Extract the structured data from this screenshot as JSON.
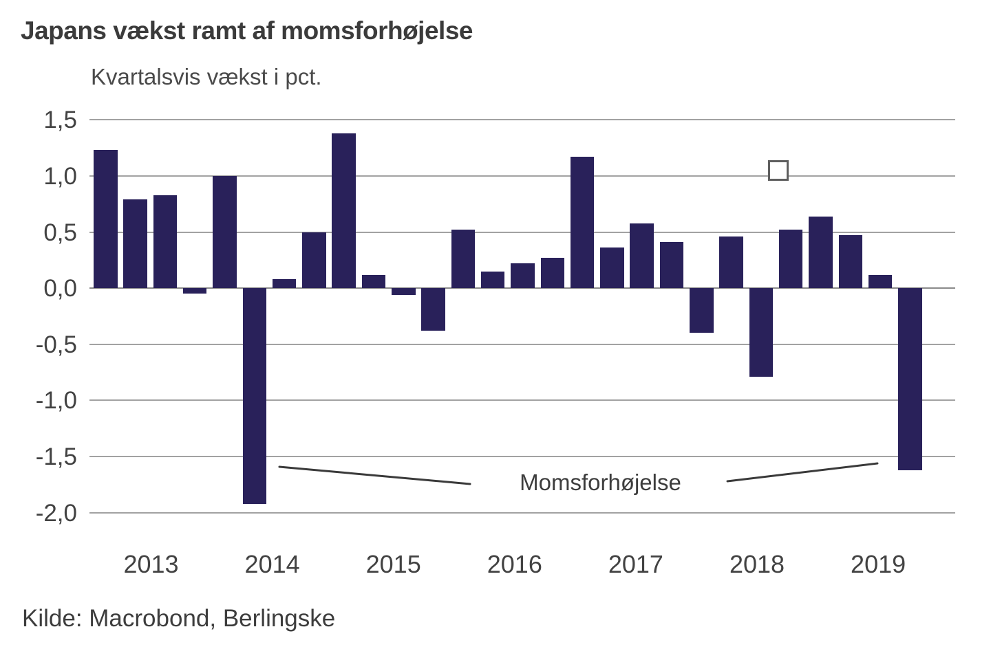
{
  "header": {
    "title": "Japans vækst ramt af momsforhøjelse",
    "subtitle": "Kvartalsvis vækst i pct."
  },
  "annotation": {
    "label": "Momsforhøjelse"
  },
  "source": {
    "label": "Kilde: Macrobond, Berlingske"
  },
  "chart_data": {
    "type": "bar",
    "title": "Japans vækst ramt af momsforhøjelse",
    "subtitle": "Kvartalsvis vækst i pct.",
    "ylabel": "Kvartalsvis vækst i pct.",
    "categories": [
      "2013 Q1",
      "2013 Q2",
      "2013 Q3",
      "2013 Q4",
      "2014 Q1",
      "2014 Q2",
      "2014 Q3",
      "2014 Q4",
      "2015 Q1",
      "2015 Q2",
      "2015 Q3",
      "2015 Q4",
      "2016 Q1",
      "2016 Q2",
      "2016 Q3",
      "2016 Q4",
      "2017 Q1",
      "2017 Q2",
      "2017 Q3",
      "2017 Q4",
      "2018 Q1",
      "2018 Q2",
      "2018 Q3",
      "2018 Q4",
      "2019 Q1",
      "2019 Q2",
      "2019 Q3",
      "2019 Q4"
    ],
    "values": [
      1.23,
      0.79,
      0.83,
      -0.05,
      1.0,
      -1.92,
      0.08,
      0.5,
      1.38,
      0.12,
      -0.06,
      -0.38,
      0.52,
      0.15,
      0.22,
      0.27,
      1.17,
      0.36,
      0.58,
      0.41,
      -0.4,
      0.46,
      -0.79,
      0.52,
      0.64,
      0.47,
      0.12,
      -1.62
    ],
    "year_labels": [
      "2013",
      "2014",
      "2015",
      "2016",
      "2017",
      "2018",
      "2019"
    ],
    "y_tick_labels": [
      "1,5",
      "1,0",
      "0,5",
      "0,0",
      "-0,5",
      "-1,0",
      "-1,5",
      "-2,0"
    ],
    "y_tick_values": [
      1.5,
      1.0,
      0.5,
      0.0,
      -0.5,
      -1.0,
      -1.5,
      -2.0
    ],
    "ylim": [
      -2.0,
      1.5
    ],
    "grid": "horizontal-only",
    "legend_position": "none",
    "annotation_text": "Momsforhøjelse",
    "annotation_targets": [
      "2014 Q2",
      "2019 Q4"
    ],
    "marker": {
      "shape": "hollow-square",
      "border_color": "#5f5f5f",
      "fill": "#ffffff",
      "near_category": "2018 Q4",
      "near_value": 1.05
    },
    "bar_color": "#29215a",
    "gridline_color": "#a2a2a2",
    "zero_line_color": "#8a8a8a",
    "text_color": "#424242"
  }
}
